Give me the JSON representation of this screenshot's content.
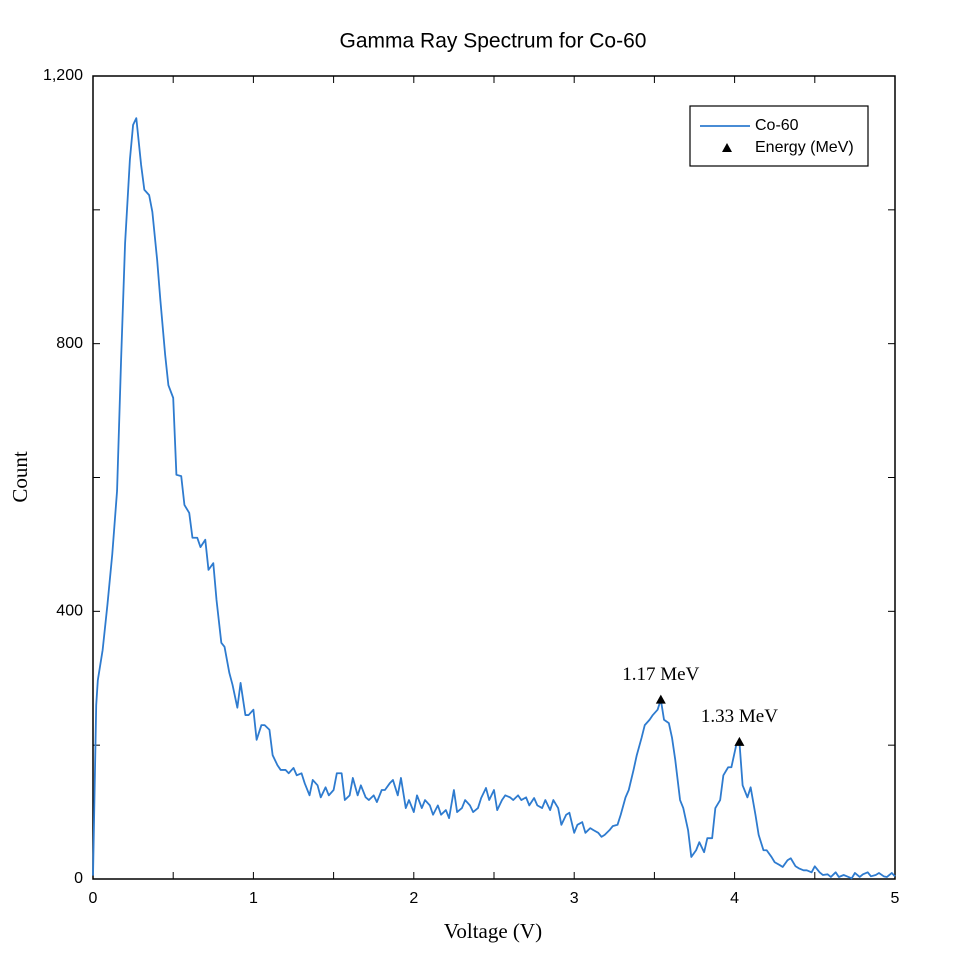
{
  "chart_data": {
    "type": "line",
    "title": "Gamma Ray Spectrum for Co-60",
    "x_label": "Voltage (V)",
    "y_label": "Count",
    "xlim": [
      0,
      5
    ],
    "ylim": [
      0,
      1200
    ],
    "xticks": [
      0,
      1,
      2,
      3,
      4,
      5
    ],
    "yticks": [
      0,
      400,
      800,
      {
        "value": 1200,
        "label": "1,200"
      }
    ],
    "minor_xticks": [
      0.5,
      1.5,
      2.5,
      3.5,
      4.5
    ],
    "minor_yticks": [
      200,
      600,
      1000
    ],
    "legend": "top-right",
    "series": [
      {
        "name": "Co-60",
        "color": "#2e7bcf",
        "x": [
          0,
          0.02,
          0.03,
          0.06,
          0.09,
          0.12,
          0.15,
          0.175,
          0.2,
          0.23,
          0.25,
          0.27,
          0.3,
          0.32,
          0.35,
          0.37,
          0.4,
          0.42,
          0.45,
          0.47,
          0.5,
          0.52,
          0.55,
          0.57,
          0.6,
          0.62,
          0.65,
          0.67,
          0.7,
          0.72,
          0.75,
          0.77,
          0.8,
          0.82,
          0.85,
          0.87,
          0.9,
          0.92,
          0.95,
          0.97,
          1.0,
          1.02,
          1.05,
          1.07,
          1.1,
          1.12,
          1.15,
          1.17,
          1.2,
          1.22,
          1.25,
          1.27,
          1.3,
          1.32,
          1.35,
          1.37,
          1.4,
          1.42,
          1.45,
          1.47,
          1.5,
          1.52,
          1.55,
          1.57,
          1.6,
          1.62,
          1.65,
          1.67,
          1.7,
          1.72,
          1.75,
          1.77,
          1.8,
          1.82,
          1.85,
          1.87,
          1.9,
          1.92,
          1.95,
          1.97,
          2.0,
          2.02,
          2.05,
          2.07,
          2.1,
          2.12,
          2.15,
          2.17,
          2.2,
          2.22,
          2.25,
          2.27,
          2.3,
          2.32,
          2.35,
          2.37,
          2.4,
          2.42,
          2.45,
          2.47,
          2.5,
          2.52,
          2.55,
          2.57,
          2.6,
          2.62,
          2.65,
          2.67,
          2.7,
          2.72,
          2.75,
          2.77,
          2.8,
          2.82,
          2.85,
          2.87,
          2.9,
          2.92,
          2.95,
          2.97,
          3.0,
          3.02,
          3.05,
          3.07,
          3.1,
          3.12,
          3.15,
          3.17,
          3.19,
          3.22,
          3.24,
          3.27,
          3.29,
          3.32,
          3.34,
          3.37,
          3.39,
          3.42,
          3.44,
          3.47,
          3.49,
          3.52,
          3.54,
          3.56,
          3.59,
          3.61,
          3.63,
          3.66,
          3.68,
          3.71,
          3.73,
          3.76,
          3.78,
          3.81,
          3.83,
          3.86,
          3.88,
          3.91,
          3.93,
          3.96,
          3.98,
          4.01,
          4.03,
          4.05,
          4.08,
          4.1,
          4.13,
          4.15,
          4.18,
          4.2,
          4.23,
          4.25,
          4.28,
          4.3,
          4.33,
          4.35,
          4.38,
          4.4,
          4.43,
          4.45,
          4.48,
          4.5,
          4.53,
          4.55,
          4.58,
          4.6,
          4.63,
          4.65,
          4.68,
          4.7,
          4.73,
          4.75,
          4.78,
          4.8,
          4.83,
          4.85,
          4.88,
          4.9,
          4.93,
          4.95,
          4.98,
          5.0
        ],
        "values": [
          5,
          260,
          297,
          342,
          410,
          485,
          580,
          775,
          950,
          1075,
          1127,
          1137,
          1067,
          1030,
          1022,
          997,
          925,
          865,
          783,
          738,
          719,
          604,
          602,
          559,
          547,
          510,
          510,
          496,
          507,
          462,
          472,
          417,
          353,
          347,
          308,
          290,
          256,
          293,
          245,
          245,
          253,
          208,
          230,
          230,
          223,
          185,
          170,
          163,
          163,
          158,
          166,
          155,
          158,
          143,
          125,
          148,
          140,
          122,
          137,
          125,
          133,
          158,
          158,
          118,
          125,
          151,
          125,
          140,
          122,
          118,
          125,
          115,
          133,
          133,
          143,
          148,
          125,
          151,
          106,
          118,
          100,
          125,
          106,
          118,
          110,
          96,
          110,
          96,
          103,
          91,
          133,
          100,
          106,
          118,
          110,
          100,
          106,
          121,
          136,
          118,
          133,
          103,
          118,
          125,
          122,
          118,
          125,
          118,
          122,
          110,
          121,
          110,
          106,
          118,
          103,
          118,
          106,
          81,
          96,
          99,
          69,
          81,
          85,
          69,
          76,
          73,
          69,
          63,
          66,
          73,
          79,
          81,
          96,
          122,
          133,
          163,
          185,
          211,
          230,
          238,
          245,
          253,
          268,
          238,
          233,
          211,
          178,
          118,
          106,
          73,
          33,
          43,
          55,
          40,
          61,
          61,
          106,
          118,
          155,
          167,
          167,
          200,
          205,
          140,
          122,
          137,
          96,
          66,
          43,
          43,
          33,
          25,
          21,
          18,
          28,
          31,
          19,
          16,
          13,
          13,
          10,
          19,
          10,
          6,
          7,
          3,
          10,
          3,
          6,
          4,
          1,
          9,
          3,
          7,
          10,
          4,
          6,
          9,
          4,
          3,
          9,
          4
        ]
      },
      {
        "name": "Energy (MeV)",
        "color": "#000000",
        "marker": "triangle",
        "x": [
          3.54,
          4.03
        ],
        "values": [
          268,
          205
        ],
        "annotations": [
          "1.17 MeV",
          "1.33 MeV"
        ]
      }
    ]
  }
}
